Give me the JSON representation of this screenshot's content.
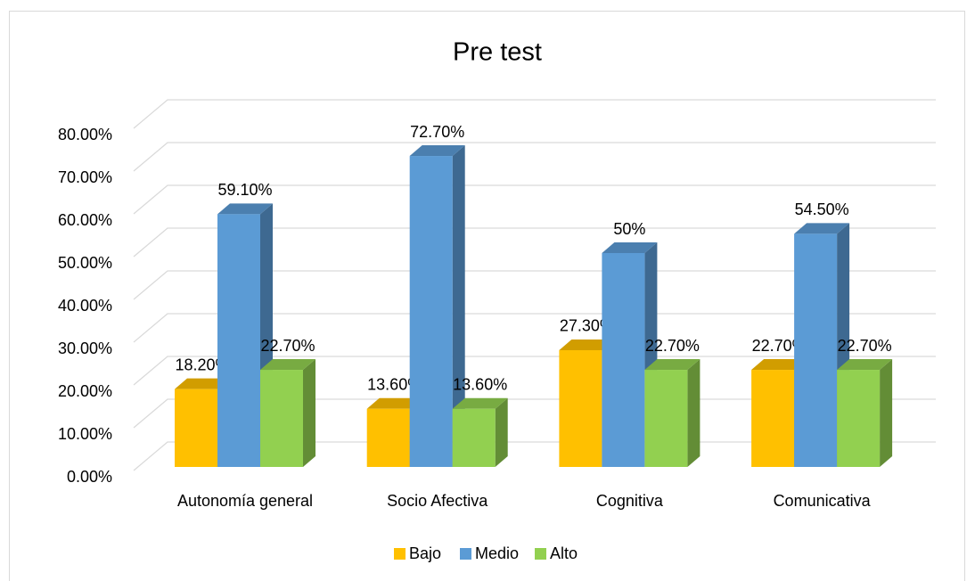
{
  "chart_data": {
    "type": "bar3d",
    "title": "Pre test",
    "categories": [
      "Autonomía general",
      "Socio Afectiva",
      "Cognitiva",
      "Comunicativa"
    ],
    "series": [
      {
        "name": "Bajo",
        "color": "#FFC000",
        "values": [
          18.2,
          13.6,
          27.3,
          22.7
        ],
        "value_labels": [
          "18.20%",
          "13.60%",
          "27.30%",
          "22.70%"
        ]
      },
      {
        "name": "Medio",
        "color": "#5B9BD5",
        "values": [
          59.1,
          72.7,
          50,
          54.5
        ],
        "value_labels": [
          "59.10%",
          "72.70%",
          "50%",
          "54.50%"
        ]
      },
      {
        "name": "Alto",
        "color": "#92D050",
        "values": [
          22.7,
          13.6,
          22.7,
          22.7
        ],
        "value_labels": [
          "22.70%",
          "13.60%",
          "22.70%",
          "22.70%"
        ]
      }
    ],
    "ylim": [
      0,
      80
    ],
    "yticks": [
      {
        "value": 0,
        "label": "0.00%"
      },
      {
        "value": 10,
        "label": "10.00%"
      },
      {
        "value": 20,
        "label": "20.00%"
      },
      {
        "value": 30,
        "label": "30.00%"
      },
      {
        "value": 40,
        "label": "40.00%"
      },
      {
        "value": 50,
        "label": "50.00%"
      },
      {
        "value": 60,
        "label": "60.00%"
      },
      {
        "value": 70,
        "label": "70.00%"
      },
      {
        "value": 80,
        "label": "80.00%"
      }
    ],
    "grid": true,
    "legend": "bottom"
  }
}
